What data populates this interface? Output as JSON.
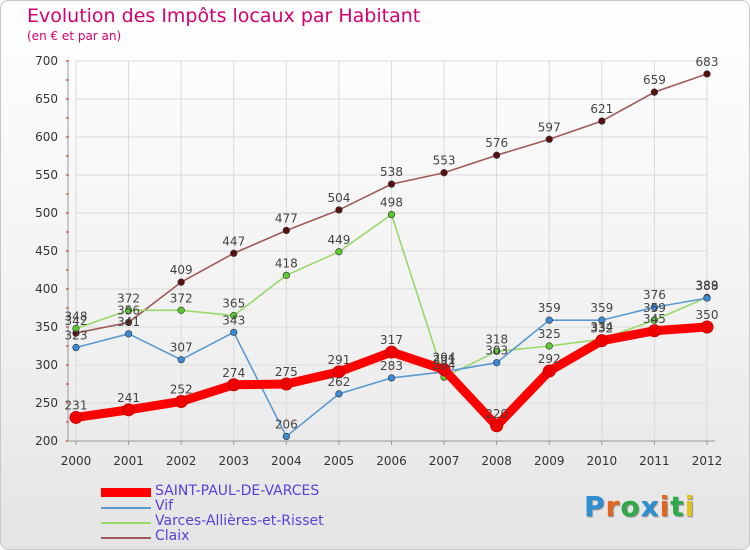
{
  "header": {
    "title": "Evolution des Impôts locaux par Habitant",
    "subtitle": "(en € et par an)"
  },
  "logo": {
    "text": "Proxiti",
    "letter_colors": [
      "#2b8fd1",
      "#e2661e",
      "#2fa84a",
      "#2b8fd1",
      "#e2661e",
      "#2fa84a",
      "#e2c21e"
    ]
  },
  "chart_data": {
    "type": "line",
    "title": "Evolution des Impôts locaux par Habitant",
    "subtitle": "(en € et par an)",
    "x": [
      "2000",
      "2001",
      "2002",
      "2003",
      "2004",
      "2005",
      "2006",
      "2007",
      "2008",
      "2009",
      "2010",
      "2011",
      "2012"
    ],
    "ylim": [
      200,
      700
    ],
    "yticks": [
      200,
      250,
      300,
      350,
      400,
      450,
      500,
      550,
      600,
      650,
      700
    ],
    "grid": true,
    "legend_position": "bottom-left",
    "series": [
      {
        "name": "Claix",
        "color": "#a05a5a",
        "marker_color": "#5a1010",
        "values": [
          342,
          356,
          409,
          447,
          477,
          504,
          538,
          553,
          576,
          597,
          621,
          659,
          683
        ]
      },
      {
        "name": "Varces-Allières-et-Risset",
        "color": "#9ad86a",
        "marker_color": "#5ac82e",
        "values": [
          348,
          372,
          372,
          365,
          418,
          449,
          498,
          284,
          318,
          325,
          334,
          359,
          389
        ]
      },
      {
        "name": "Vif",
        "color": "#5a9ad0",
        "marker_color": "#3a8ad8",
        "values": [
          323,
          341,
          307,
          343,
          206,
          262,
          283,
          291,
          303,
          359,
          359,
          376,
          388
        ]
      },
      {
        "name": "SAINT-PAUL-DE-VARCES",
        "color": "#ff0000",
        "marker_color": "#ee0000",
        "values": [
          231,
          241,
          252,
          274,
          275,
          291,
          317,
          294,
          220,
          292,
          332,
          345,
          350
        ]
      }
    ],
    "legend": [
      "SAINT-PAUL-DE-VARCES",
      "Vif",
      "Varces-Allières-et-Risset",
      "Claix"
    ]
  }
}
